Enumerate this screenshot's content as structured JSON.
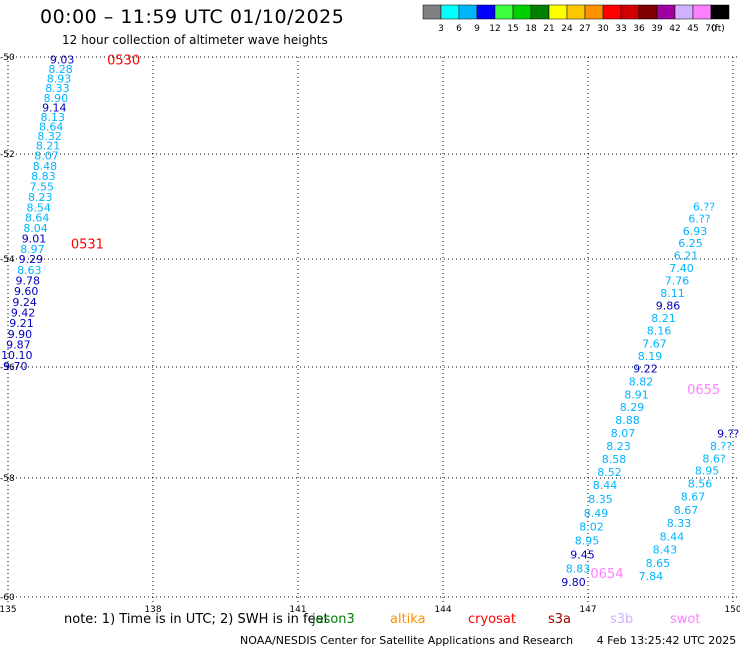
{
  "header": {
    "title": "00:00 – 11:59 UTC 01/10/2025",
    "subtitle": "12 hour collection of altimeter wave heights"
  },
  "legend": {
    "ticks": [
      "3",
      "6",
      "9",
      "12",
      "15",
      "18",
      "21",
      "24",
      "27",
      "30",
      "33",
      "36",
      "39",
      "42",
      "45",
      "70",
      "(ft)"
    ],
    "colors": [
      "#808080",
      "#00ffff",
      "#00b4ff",
      "#0000ff",
      "#40ff40",
      "#00d000",
      "#008000",
      "#ffff00",
      "#ffc800",
      "#ff9000",
      "#ff0000",
      "#d00000",
      "#800000",
      "#a000a0",
      "#d0b0ff",
      "#ff80ff",
      "#000000"
    ]
  },
  "axes": {
    "lon_labels": [
      "135",
      "138",
      "141",
      "144",
      "147",
      "150"
    ],
    "lat_labels": [
      "-50",
      "-52",
      "-54",
      "-56",
      "-58",
      "-60"
    ]
  },
  "colors": {
    "c_cyan": "#00b4ff",
    "c_blue": "#0000c0",
    "pass_red": "#ff0000",
    "pass_pink": "#ff80ff"
  },
  "tracks": [
    {
      "name": "track-west",
      "lon_start": 136.12,
      "lat_start": -50.05,
      "lon_end": 135.15,
      "lat_end": -55.98,
      "values": [
        "9.03",
        "8.28",
        "8.93",
        "8.33",
        "8.90",
        "9.14",
        "8.13",
        "8.64",
        "8.32",
        "8.21",
        "8.07",
        "8.48",
        "8.83",
        "7.55",
        "8.23",
        "8.54",
        "8.64",
        "8.04",
        "9.01",
        "8.97",
        "9.29",
        "8.63",
        "9.78",
        "9.60",
        "9.24",
        "9.42",
        "9.21",
        "9.90",
        "9.87",
        "10.10",
        "9.70"
      ]
    },
    {
      "name": "track-east-a",
      "lon_start": 149.4,
      "lat_start": -53.0,
      "lon_end": 146.7,
      "lat_end": -59.75,
      "values": [
        "6.??",
        "6.??",
        "6.93",
        "6.25",
        "6.21",
        "7.40",
        "7.76",
        "8.11",
        "9.86",
        "8.21",
        "8.16",
        "7.67",
        "8.19",
        "9.22",
        "8.82",
        "8.91",
        "8.29",
        "8.88",
        "8.07",
        "8.23",
        "8.58",
        "8.52",
        "8.44",
        "8.35",
        "8.49",
        "8.02",
        "8.95",
        "9.45",
        "8.83",
        "9.80"
      ]
    },
    {
      "name": "track-east-b",
      "lon_start": 149.9,
      "lat_start": -57.2,
      "lon_end": 148.3,
      "lat_end": -59.65,
      "values": [
        "9.??",
        "8.??",
        "8.6?",
        "8.95",
        "8.56",
        "8.67",
        "8.67",
        "8.33",
        "8.44",
        "8.43",
        "8.65",
        "7.84"
      ]
    }
  ],
  "pass_labels": [
    {
      "text": "0530",
      "lon": 137.05,
      "lat": -50.05,
      "color": "#ff0000"
    },
    {
      "text": "0531",
      "lon": 136.3,
      "lat": -53.7,
      "color": "#ff0000"
    },
    {
      "text": "0655",
      "lon": 149.05,
      "lat": -56.4,
      "color": "#ff80ff"
    },
    {
      "text": "0654",
      "lon": 147.05,
      "lat": -59.6,
      "color": "#ff80ff"
    }
  ],
  "footer": {
    "note": "note:  1) Time is in UTC;  2) SWH is in feet",
    "satellites": [
      {
        "name": "jason3",
        "color": "#008000"
      },
      {
        "name": "altika",
        "color": "#ff9000"
      },
      {
        "name": "cryosat",
        "color": "#ff0000"
      },
      {
        "name": "s3a",
        "color": "#a00000"
      },
      {
        "name": "s3b",
        "color": "#d0b0ff"
      },
      {
        "name": "swot",
        "color": "#ff80ff"
      }
    ],
    "credit": "NOAA/NESDIS Center for Satellite Applications and Research",
    "timestamp": "4 Feb 13:25:42 UTC 2025"
  }
}
